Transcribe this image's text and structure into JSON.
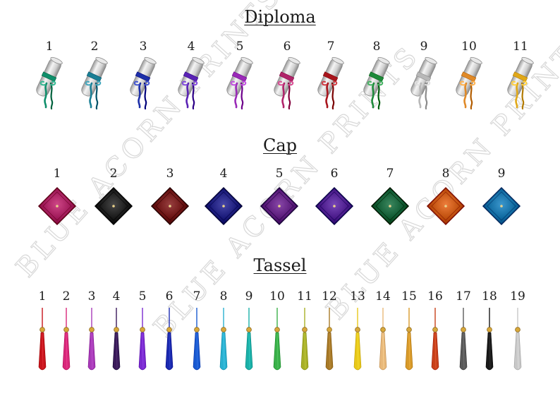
{
  "sections": {
    "diploma": {
      "title": "Diploma"
    },
    "cap": {
      "title": "Cap"
    },
    "tassel": {
      "title": "Tassel"
    }
  },
  "watermark": {
    "text": "BLUE ACORN PRINTS"
  },
  "diplomas": [
    {
      "label": "1",
      "color": "#0f8f6b"
    },
    {
      "label": "2",
      "color": "#1a7f95"
    },
    {
      "label": "3",
      "color": "#1c2fa8"
    },
    {
      "label": "4",
      "color": "#5a22b4"
    },
    {
      "label": "5",
      "color": "#9a2ab8"
    },
    {
      "label": "6",
      "color": "#b0246a"
    },
    {
      "label": "7",
      "color": "#a8141c"
    },
    {
      "label": "8",
      "color": "#1d8a3a"
    },
    {
      "label": "9",
      "color": "#b8b8b8"
    },
    {
      "label": "10",
      "color": "#e08a28"
    },
    {
      "label": "11",
      "color": "#e0a818"
    }
  ],
  "caps": [
    {
      "label": "1",
      "color": "#a11a5a"
    },
    {
      "label": "2",
      "color": "#1a1a1a"
    },
    {
      "label": "3",
      "color": "#6a1212"
    },
    {
      "label": "4",
      "color": "#1a1a7a"
    },
    {
      "label": "5",
      "color": "#5a1a7a"
    },
    {
      "label": "6",
      "color": "#4a1a8a"
    },
    {
      "label": "7",
      "color": "#0f5a32"
    },
    {
      "label": "8",
      "color": "#c0500e"
    },
    {
      "label": "9",
      "color": "#0f6aa0"
    }
  ],
  "tassels": [
    {
      "label": "1",
      "color": "#c8141c"
    },
    {
      "label": "2",
      "color": "#d8287a"
    },
    {
      "label": "3",
      "color": "#a83ab8"
    },
    {
      "label": "4",
      "color": "#3a1a5a"
    },
    {
      "label": "5",
      "color": "#7a2ad0"
    },
    {
      "label": "6",
      "color": "#1a2ab0"
    },
    {
      "label": "7",
      "color": "#1a5ad0"
    },
    {
      "label": "8",
      "color": "#2ab0d0"
    },
    {
      "label": "9",
      "color": "#1ab0a8"
    },
    {
      "label": "10",
      "color": "#3ab04a"
    },
    {
      "label": "11",
      "color": "#a8b028"
    },
    {
      "label": "12",
      "color": "#a87a28"
    },
    {
      "label": "13",
      "color": "#e8c81a"
    },
    {
      "label": "14",
      "color": "#e8b87a"
    },
    {
      "label": "15",
      "color": "#d89a2a"
    },
    {
      "label": "16",
      "color": "#c8401a"
    },
    {
      "label": "17",
      "color": "#5a5a5a"
    },
    {
      "label": "18",
      "color": "#1a1a1a"
    },
    {
      "label": "19",
      "color": "#c8c8c8"
    }
  ]
}
